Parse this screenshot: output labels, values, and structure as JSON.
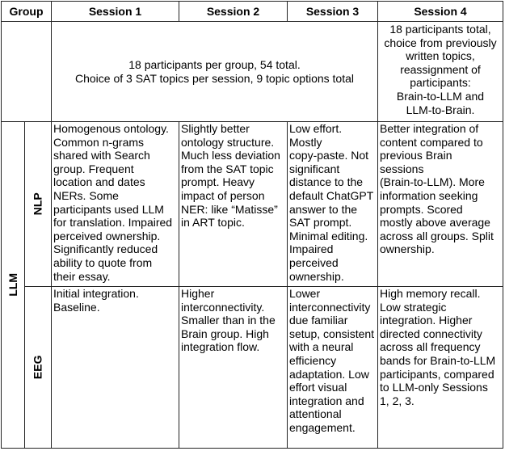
{
  "header": {
    "group": "Group",
    "sessions": [
      "Session 1",
      "Session 2",
      "Session 3",
      "Session 4"
    ]
  },
  "info": {
    "sessions_1_3": "18 participants per group, 54 total.\nChoice of 3 SAT topics per session, 9 topic options total",
    "session_4": "18 participants total,\nchoice from previously\nwritten topics,\nreassignment of\nparticipants:\nBrain-to-LLM and\nLLM-to-Brain."
  },
  "group": {
    "name": "LLM",
    "rows": [
      {
        "label": "NLP",
        "cells": [
          "Homogenous ontology.\nCommon n-grams\nshared with Search\ngroup. Frequent\nlocation and dates\nNERs. Some\nparticipants used LLM\nfor translation. Impaired\nperceived ownership.\nSignificantly reduced\nability to quote from\ntheir essay.",
          "Slightly better\nontology structure.\nMuch less deviation\nfrom the SAT topic\nprompt. Heavy\nimpact of person\nNER: like “Matisse”\nin ART topic.",
          "Low effort.\nMostly\ncopy-paste. Not\nsignificant\ndistance to the\ndefault ChatGPT\nanswer to the\nSAT prompt.\nMinimal editing.\nImpaired\nperceived\nownership.",
          "Better integration of\ncontent compared to\nprevious Brain\nsessions\n(Brain-to-LLM). More\ninformation seeking\nprompts. Scored\nmostly above average\nacross all groups. Split\nownership."
        ]
      },
      {
        "label": "EEG",
        "cells": [
          "Initial integration.\nBaseline.",
          "Higher\ninterconnectivity.\nSmaller than in the\nBrain group. High\nintegration flow.",
          "Lower\ninterconnectivity\ndue familiar\nsetup, consistent\nwith a neural\nefficiency\nadaptation. Low\neffort visual\nintegration and\nattentional\nengagement.",
          "High memory recall.\nLow strategic\nintegration. Higher\ndirected connectivity\nacross all frequency\nbands for Brain-to-LLM\nparticipants, compared\nto LLM-only Sessions\n1, 2, 3."
        ]
      }
    ]
  }
}
